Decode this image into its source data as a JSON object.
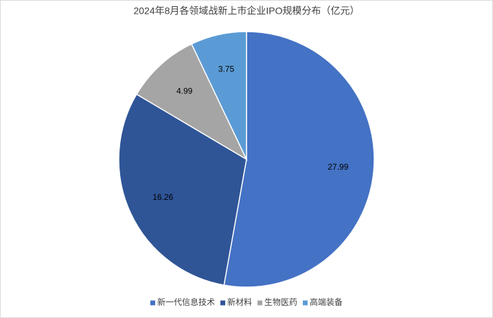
{
  "chart_data": {
    "type": "pie",
    "title": "2024年8月各领域战新上市企业IPO规模分布（亿元）",
    "categories": [
      "新一代信息技术",
      "新材料",
      "生物医药",
      "高端装备"
    ],
    "values": [
      27.99,
      16.26,
      4.99,
      3.75
    ],
    "colors": [
      "#4472c4",
      "#2f5597",
      "#a5a5a5",
      "#5b9bd5"
    ],
    "legend": "bottom"
  }
}
